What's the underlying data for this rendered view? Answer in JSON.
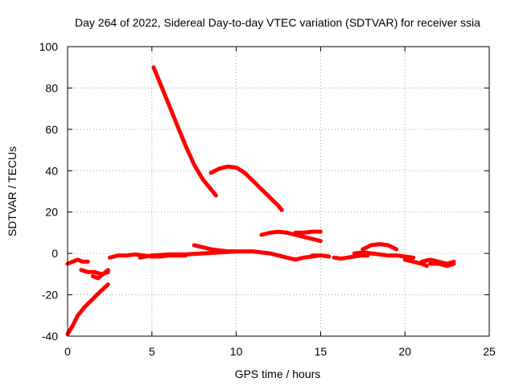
{
  "chart_data": {
    "type": "line",
    "title": "Day 264 of 2022, Sidereal Day-to-day VTEC variation (SDTVAR) for receiver ssia",
    "xlabel": "GPS time / hours",
    "ylabel": "SDTVAR / TECUs",
    "xlim": [
      0,
      25
    ],
    "ylim": [
      -40,
      100
    ],
    "xticks": [
      0,
      5,
      10,
      15,
      20,
      25
    ],
    "yticks": [
      -40,
      -20,
      0,
      20,
      40,
      60,
      80,
      100
    ],
    "grid": true,
    "color": "#ff0000",
    "series": [
      {
        "name": "s1",
        "x": [
          0.0,
          0.3,
          0.6,
          1.0,
          1.5,
          2.0,
          2.4
        ],
        "y": [
          -39,
          -35,
          -30,
          -26,
          -22,
          -18,
          -15
        ]
      },
      {
        "name": "s2",
        "x": [
          0.0,
          0.3,
          0.6,
          0.9,
          1.2
        ],
        "y": [
          -5,
          -4,
          -3,
          -4,
          -4
        ]
      },
      {
        "name": "s3",
        "x": [
          0.8,
          1.2,
          1.6,
          2.0,
          2.4
        ],
        "y": [
          -8,
          -9,
          -9,
          -10,
          -9
        ]
      },
      {
        "name": "s4",
        "x": [
          1.5,
          1.8,
          2.1,
          2.4
        ],
        "y": [
          -11,
          -12,
          -10,
          -8
        ]
      },
      {
        "name": "s5",
        "x": [
          2.5,
          3.0,
          3.5,
          4.0,
          4.5,
          5.0,
          5.5,
          6.0,
          6.5,
          7.0
        ],
        "y": [
          -2,
          -1,
          -1,
          -0.5,
          -1,
          -1.5,
          -1.5,
          -1,
          -1,
          -1
        ]
      },
      {
        "name": "s6",
        "x": [
          4.3,
          5.0,
          6.0,
          7.0,
          8.0,
          9.0,
          10.0,
          11.0,
          12.0,
          12.5,
          13.0,
          13.5,
          14.0,
          15.0
        ],
        "y": [
          -2,
          -1,
          -0.5,
          -0.5,
          0,
          0.5,
          1,
          1,
          0,
          -1,
          -2,
          -3,
          -2,
          -1
        ]
      },
      {
        "name": "s7",
        "x": [
          5.1,
          5.5,
          6.0,
          6.5,
          7.0,
          7.5,
          8.0,
          8.5,
          8.8
        ],
        "y": [
          90,
          82,
          72,
          62,
          52,
          43,
          36,
          31,
          28
        ]
      },
      {
        "name": "s8",
        "x": [
          8.5,
          9.0,
          9.5,
          10.0,
          10.5,
          11.0,
          11.5,
          12.0,
          12.5,
          12.7
        ],
        "y": [
          39,
          41,
          42,
          41.5,
          39,
          35,
          31,
          27,
          23,
          21
        ]
      },
      {
        "name": "s9",
        "x": [
          7.5,
          8.0,
          8.5,
          9.0,
          9.5,
          10.0
        ],
        "y": [
          4,
          3,
          2,
          1.5,
          1,
          1
        ]
      },
      {
        "name": "s10",
        "x": [
          11.5,
          12.0,
          12.5,
          13.0,
          13.5,
          14.0,
          14.5,
          15.0
        ],
        "y": [
          9,
          10,
          10.5,
          10,
          9,
          8,
          7,
          6
        ]
      },
      {
        "name": "s11",
        "x": [
          13.5,
          14.0,
          14.5,
          15.0
        ],
        "y": [
          10,
          10,
          10.5,
          10.5
        ]
      },
      {
        "name": "s12",
        "x": [
          14.5,
          15.0,
          15.5
        ],
        "y": [
          -1,
          -1,
          -1.5
        ]
      },
      {
        "name": "s13",
        "x": [
          15.8,
          16.2,
          16.6,
          17.0,
          17.4,
          17.8
        ],
        "y": [
          -2,
          -2.5,
          -2,
          -1.5,
          -1,
          -1
        ]
      },
      {
        "name": "s14",
        "x": [
          17.5,
          18.0,
          18.5,
          19.0,
          19.5
        ],
        "y": [
          2,
          4,
          4.5,
          4,
          2
        ]
      },
      {
        "name": "s15",
        "x": [
          17.0,
          17.5,
          18.0,
          18.5,
          19.0,
          19.5,
          20.0,
          20.5
        ],
        "y": [
          0,
          0.5,
          0,
          -0.5,
          -1,
          -1,
          -1.5,
          -2
        ]
      },
      {
        "name": "s16",
        "x": [
          20.0,
          20.5,
          21.0,
          21.3
        ],
        "y": [
          -3,
          -4,
          -5,
          -6
        ]
      },
      {
        "name": "s17",
        "x": [
          21.0,
          21.5,
          22.0,
          22.5,
          22.9
        ],
        "y": [
          -4,
          -3,
          -4,
          -5,
          -4
        ]
      },
      {
        "name": "s18",
        "x": [
          21.5,
          22.0,
          22.5,
          22.9
        ],
        "y": [
          -5,
          -5,
          -6,
          -5
        ]
      }
    ]
  }
}
